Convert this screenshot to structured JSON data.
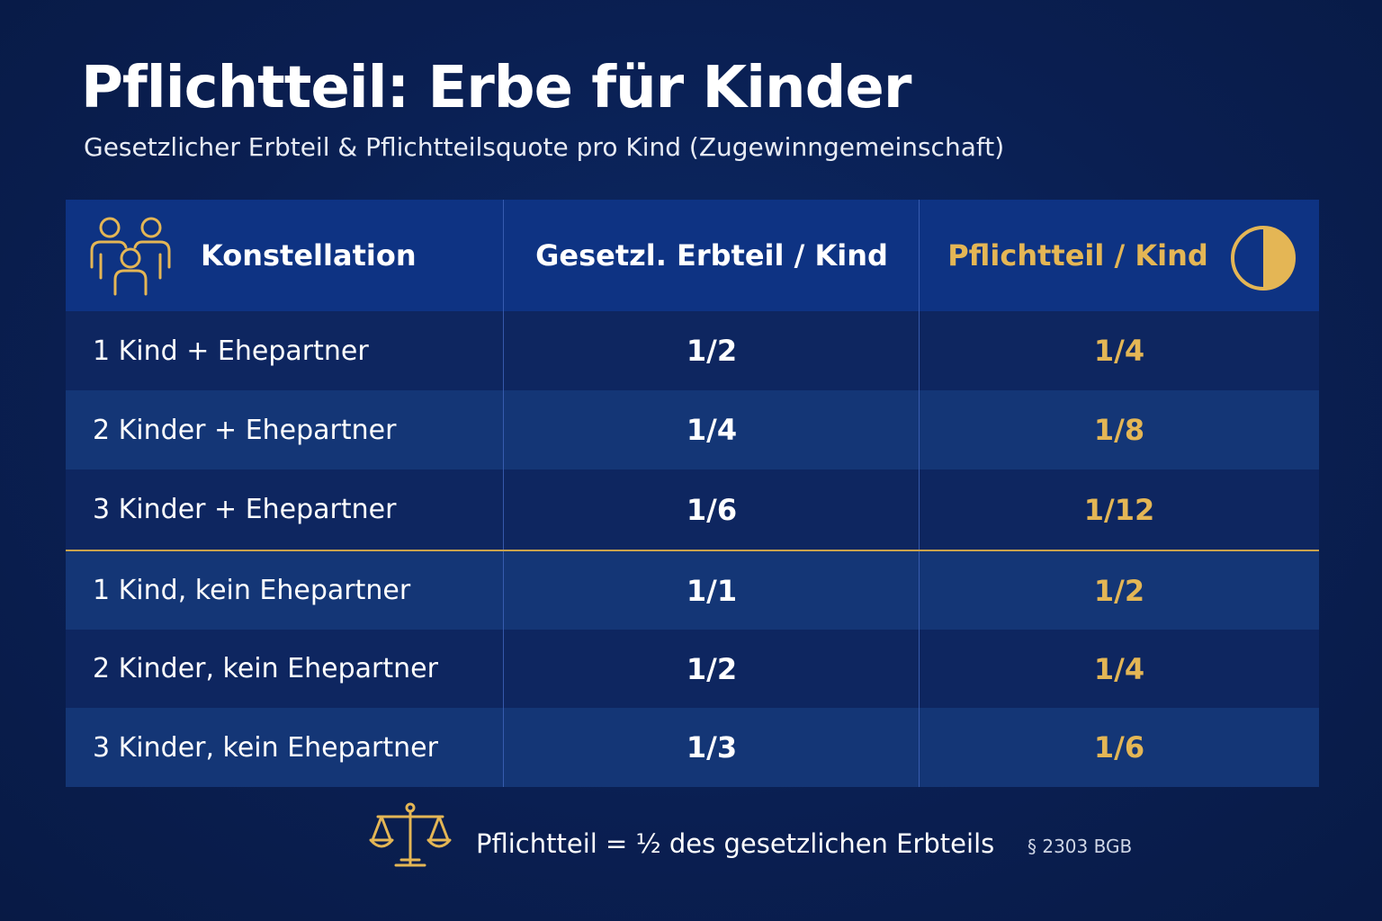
{
  "title": "Pflichtteil: Erbe für Kinder",
  "subtitle": "Gesetzlicher Erbteil & Pflichtteilsquote pro Kind (Zugewinngemeinschaft)",
  "table": {
    "headers": [
      "Konstellation",
      "Gesetzl. Erbteil / Kind",
      "Pflichtteil / Kind"
    ],
    "header_icons": [
      "people-icon",
      "half-circle-icon"
    ],
    "rows": [
      {
        "konstellation": "1 Kind + Ehepartner",
        "erbteil": "1/2",
        "pflichtteil": "1/4"
      },
      {
        "konstellation": "2 Kinder + Ehepartner",
        "erbteil": "1/4",
        "pflichtteil": "1/8"
      },
      {
        "konstellation": "3 Kinder + Ehepartner",
        "erbteil": "1/6",
        "pflichtteil": "1/12"
      },
      {
        "konstellation": "1 Kind, kein Ehepartner",
        "erbteil": "1/1",
        "pflichtteil": "1/2"
      },
      {
        "konstellation": "2 Kinder, kein Ehepartner",
        "erbteil": "1/2",
        "pflichtteil": "1/4"
      },
      {
        "konstellation": "3 Kinder, kein Ehepartner",
        "erbteil": "1/3",
        "pflichtteil": "1/6"
      }
    ]
  },
  "footer": {
    "icon": "scale-icon",
    "formula": "Pflichtteil = ½ des gesetzlichen Erbteils",
    "law_reference": "§ 2303 BGB"
  },
  "colors": {
    "background": "#0a1f52",
    "header": "#0e3383",
    "row_dark": "#0e2660",
    "row_light": "#143676",
    "accent_gold": "#e4b655"
  }
}
